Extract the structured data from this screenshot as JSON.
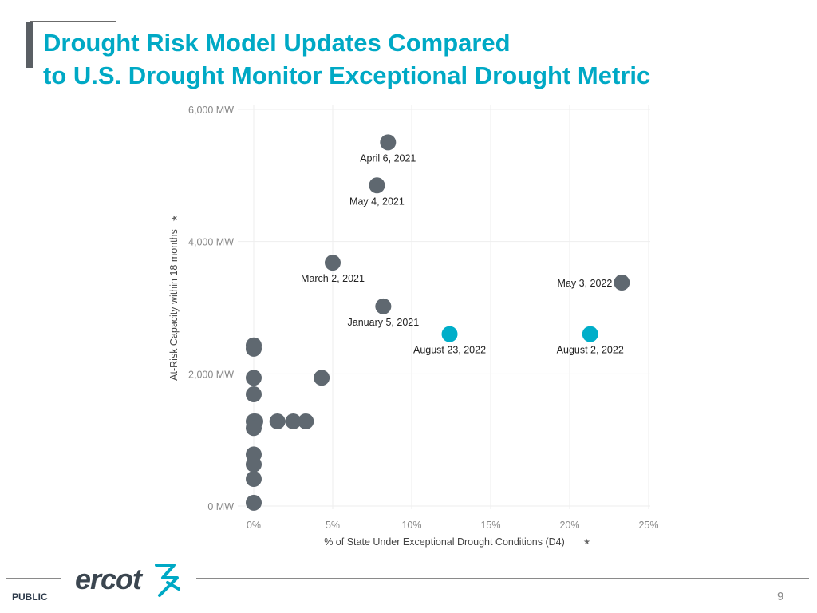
{
  "slide": {
    "title_line1": "Drought Risk Model Updates Compared",
    "title_line2": "to U.S. Drought Monitor Exceptional Drought Metric",
    "footer_label": "PUBLIC",
    "page_number": "9",
    "logo_text": "ercot"
  },
  "colors": {
    "title": "#00a9c5",
    "dot_gray": "#5f6870",
    "dot_teal": "#00aec9",
    "axis_text": "#888888",
    "grid": "#eeeeee"
  },
  "chart_data": {
    "type": "scatter",
    "title": "",
    "xlabel": "% of State Under Exceptional Drought Conditions (D4)",
    "ylabel": "At-Risk Capacity within 18 months",
    "xlim": [
      0,
      25
    ],
    "ylim": [
      0,
      6000
    ],
    "x_ticks": [
      0,
      5,
      10,
      15,
      20,
      25
    ],
    "y_ticks": [
      0,
      2000,
      4000,
      6000
    ],
    "x_tick_labels": [
      "0%",
      "5%",
      "10%",
      "15%",
      "20%",
      "25%"
    ],
    "y_tick_labels": [
      "0 MW",
      "2,000 MW",
      "4,000 MW",
      "6,000 MW"
    ],
    "grid": true,
    "points": [
      {
        "x": 8.5,
        "y": 5500,
        "label": "April 6, 2021",
        "highlight": false
      },
      {
        "x": 7.8,
        "y": 4850,
        "label": "May 4, 2021",
        "highlight": false
      },
      {
        "x": 5.0,
        "y": 3680,
        "label": "March 2, 2021",
        "highlight": false
      },
      {
        "x": 8.2,
        "y": 3020,
        "label": "January 5, 2021",
        "highlight": false
      },
      {
        "x": 23.3,
        "y": 3380,
        "label": "May 3, 2022",
        "highlight": false
      },
      {
        "x": 12.4,
        "y": 2600,
        "label": "August 23, 2022",
        "highlight": true
      },
      {
        "x": 21.3,
        "y": 2600,
        "label": "August 2, 2022",
        "highlight": true
      },
      {
        "x": 4.3,
        "y": 1940,
        "label": "",
        "highlight": false
      },
      {
        "x": 0.0,
        "y": 2430,
        "label": "",
        "highlight": false
      },
      {
        "x": 0.0,
        "y": 2380,
        "label": "",
        "highlight": false
      },
      {
        "x": 0.0,
        "y": 1940,
        "label": "",
        "highlight": false
      },
      {
        "x": 0.0,
        "y": 1690,
        "label": "",
        "highlight": false
      },
      {
        "x": 0.0,
        "y": 1280,
        "label": "",
        "highlight": false
      },
      {
        "x": 0.1,
        "y": 1280,
        "label": "",
        "highlight": false
      },
      {
        "x": 0.0,
        "y": 1180,
        "label": "",
        "highlight": false
      },
      {
        "x": 1.5,
        "y": 1280,
        "label": "",
        "highlight": false
      },
      {
        "x": 2.5,
        "y": 1280,
        "label": "",
        "highlight": false
      },
      {
        "x": 3.3,
        "y": 1280,
        "label": "",
        "highlight": false
      },
      {
        "x": 0.0,
        "y": 780,
        "label": "",
        "highlight": false
      },
      {
        "x": 0.0,
        "y": 630,
        "label": "",
        "highlight": false
      },
      {
        "x": 0.0,
        "y": 410,
        "label": "",
        "highlight": false
      },
      {
        "x": 0.0,
        "y": 50,
        "label": "",
        "highlight": false
      }
    ]
  }
}
